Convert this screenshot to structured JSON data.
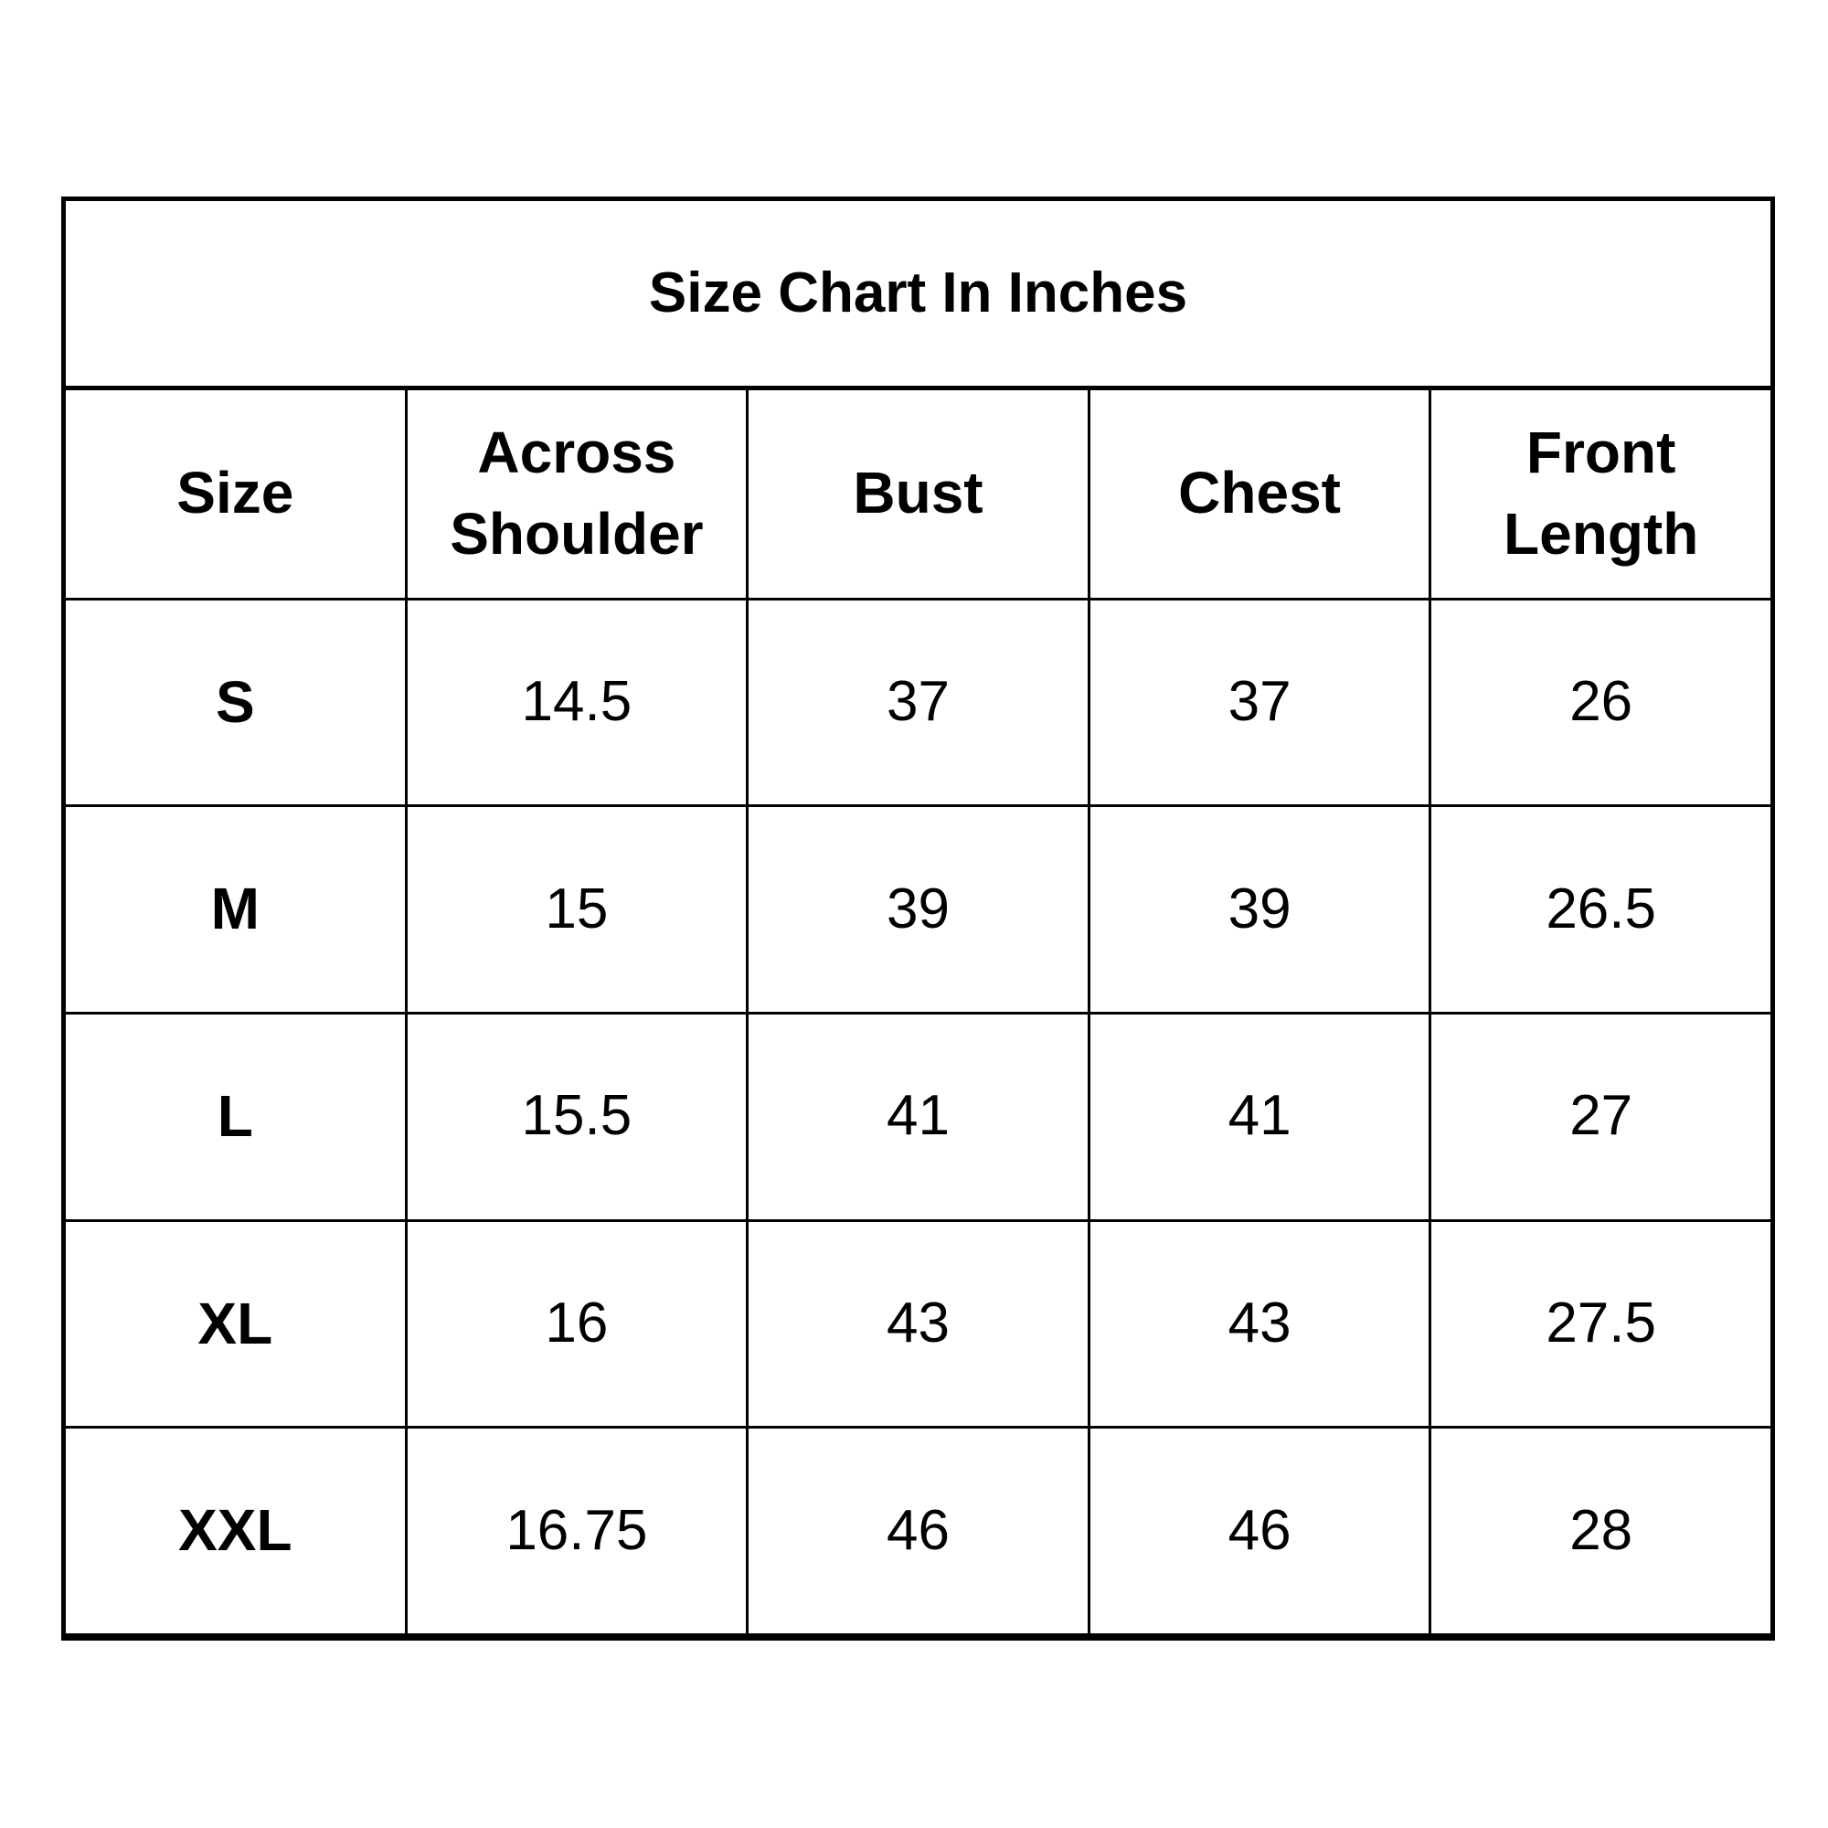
{
  "title": "Size Chart In Inches",
  "columns": [
    "Size",
    "Across Shoulder",
    "Bust",
    "Chest",
    "Front Length"
  ],
  "column_lines": [
    [
      "Size"
    ],
    [
      "Across",
      "Shoulder"
    ],
    [
      "Bust"
    ],
    [
      "Chest"
    ],
    [
      "Front",
      "Length"
    ]
  ],
  "rows": [
    [
      "S",
      "14.5",
      "37",
      "37",
      "26"
    ],
    [
      "M",
      "15",
      "39",
      "39",
      "26.5"
    ],
    [
      "L",
      "15.5",
      "41",
      "41",
      "27"
    ],
    [
      "XL",
      "16",
      "43",
      "43",
      "27.5"
    ],
    [
      "XXL",
      "16.75",
      "46",
      "46",
      "28"
    ]
  ]
}
